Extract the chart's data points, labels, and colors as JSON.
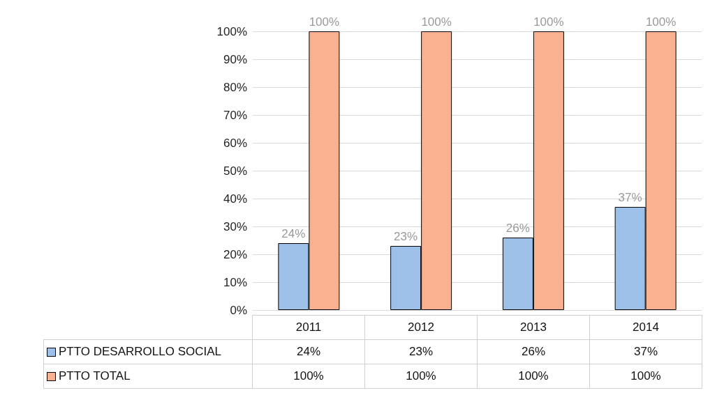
{
  "chart_data": {
    "type": "bar",
    "categories": [
      "2011",
      "2012",
      "2013",
      "2014"
    ],
    "series": [
      {
        "name": "PTTO DESARROLLO SOCIAL",
        "color": "#9dc0e8",
        "values": [
          24,
          23,
          26,
          37
        ],
        "value_labels": [
          "24%",
          "23%",
          "26%",
          "37%"
        ]
      },
      {
        "name": "PTTO TOTAL",
        "color": "#f9b18f",
        "values": [
          100,
          100,
          100,
          100
        ],
        "value_labels": [
          "100%",
          "100%",
          "100%",
          "100%"
        ]
      }
    ],
    "ylim": [
      0,
      100
    ],
    "yticks": [
      {
        "value": 0,
        "label": "0%"
      },
      {
        "value": 10,
        "label": "10%"
      },
      {
        "value": 20,
        "label": "20%"
      },
      {
        "value": 30,
        "label": "30%"
      },
      {
        "value": 40,
        "label": "40%"
      },
      {
        "value": 50,
        "label": "50%"
      },
      {
        "value": 60,
        "label": "60%"
      },
      {
        "value": 70,
        "label": "70%"
      },
      {
        "value": 80,
        "label": "80%"
      },
      {
        "value": 90,
        "label": "90%"
      },
      {
        "value": 100,
        "label": "100%"
      }
    ],
    "grid": "y",
    "legend": "bottom"
  }
}
